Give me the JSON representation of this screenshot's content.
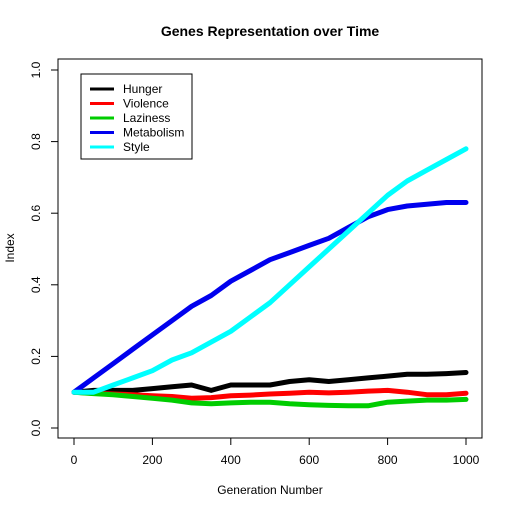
{
  "chart_data": {
    "type": "line",
    "title": "Genes Representation over Time",
    "xlabel": "Generation Number",
    "ylabel": "Index",
    "xlim": [
      0,
      1000
    ],
    "ylim": [
      0,
      1
    ],
    "x_ticks": [
      0,
      200,
      400,
      600,
      800,
      1000
    ],
    "y_ticks": [
      0.0,
      0.2,
      0.4,
      0.6,
      0.8,
      1.0
    ],
    "x_tick_labels": [
      "0",
      "200",
      "400",
      "600",
      "800",
      "1000"
    ],
    "y_tick_labels": [
      "0.0",
      "0.2",
      "0.4",
      "0.6",
      "0.8",
      "1.0"
    ],
    "legend_position": "top-left",
    "grid": false,
    "x": [
      0,
      50,
      100,
      150,
      200,
      250,
      300,
      350,
      400,
      450,
      500,
      550,
      600,
      650,
      700,
      750,
      800,
      850,
      900,
      950,
      1000
    ],
    "series": [
      {
        "name": "Hunger",
        "color": "#000000",
        "values": [
          0.1,
          0.105,
          0.105,
          0.105,
          0.11,
          0.115,
          0.12,
          0.105,
          0.12,
          0.12,
          0.12,
          0.13,
          0.135,
          0.13,
          0.135,
          0.14,
          0.145,
          0.15,
          0.15,
          0.152,
          0.155
        ]
      },
      {
        "name": "Violence",
        "color": "#ff0000",
        "values": [
          0.1,
          0.097,
          0.095,
          0.093,
          0.09,
          0.088,
          0.083,
          0.085,
          0.09,
          0.092,
          0.095,
          0.097,
          0.1,
          0.098,
          0.1,
          0.103,
          0.105,
          0.1,
          0.093,
          0.093,
          0.097
        ]
      },
      {
        "name": "Laziness",
        "color": "#00cd00",
        "values": [
          0.1,
          0.096,
          0.093,
          0.088,
          0.083,
          0.078,
          0.07,
          0.068,
          0.07,
          0.072,
          0.072,
          0.068,
          0.065,
          0.063,
          0.062,
          0.062,
          0.072,
          0.075,
          0.078,
          0.078,
          0.08
        ]
      },
      {
        "name": "Metabolism",
        "color": "#0000ee",
        "values": [
          0.1,
          0.14,
          0.18,
          0.22,
          0.26,
          0.3,
          0.34,
          0.37,
          0.41,
          0.44,
          0.47,
          0.49,
          0.51,
          0.53,
          0.56,
          0.59,
          0.61,
          0.62,
          0.625,
          0.63,
          0.63
        ]
      },
      {
        "name": "Style",
        "color": "#00ffff",
        "values": [
          0.1,
          0.1,
          0.12,
          0.14,
          0.16,
          0.19,
          0.21,
          0.24,
          0.27,
          0.31,
          0.35,
          0.4,
          0.45,
          0.5,
          0.55,
          0.6,
          0.65,
          0.69,
          0.72,
          0.75,
          0.78
        ]
      }
    ]
  }
}
